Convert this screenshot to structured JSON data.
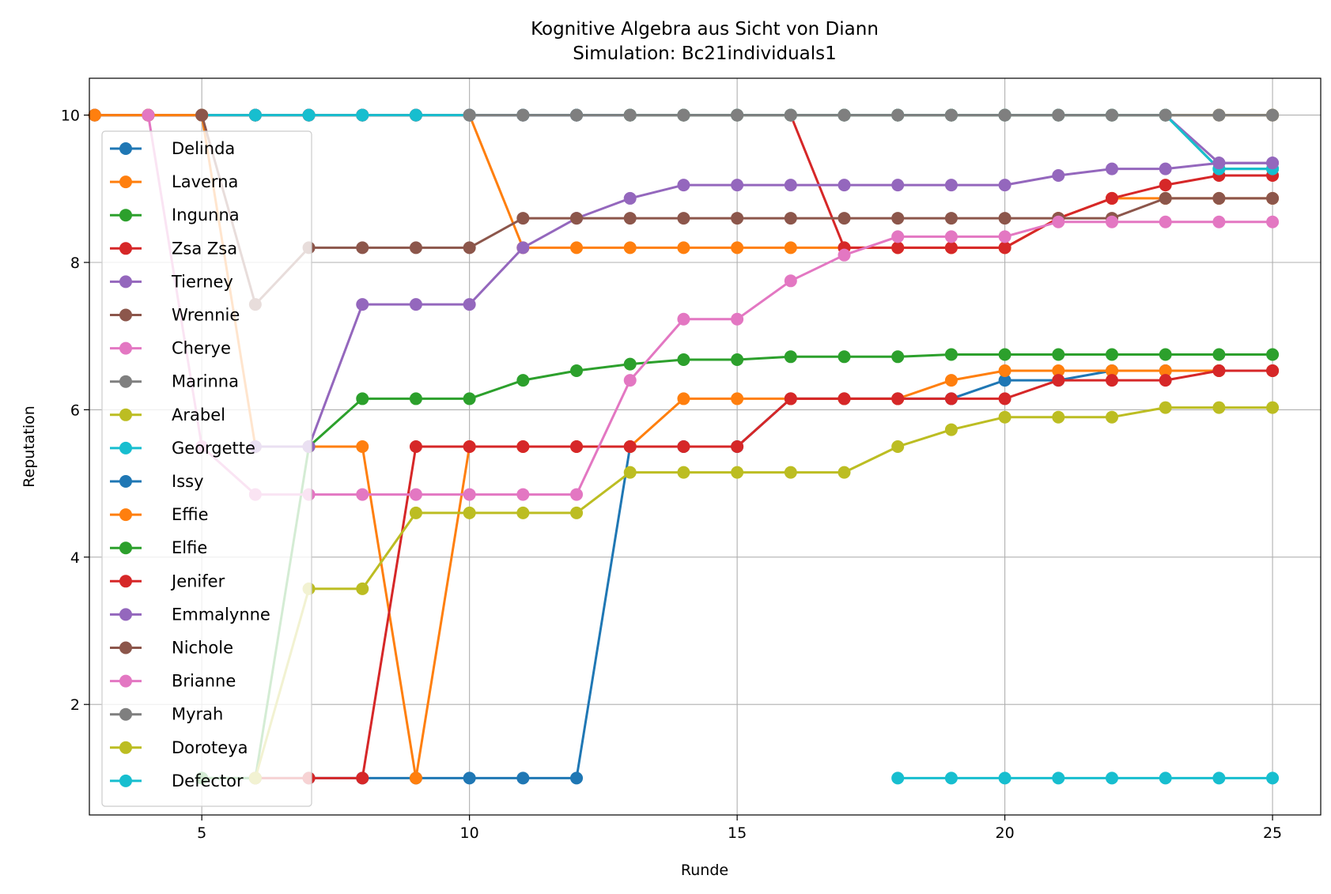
{
  "chart_data": {
    "type": "line",
    "title": "Kognitive Algebra aus Sicht von Diann",
    "subtitle": "Simulation: Bc21individuals1",
    "xlabel": "Runde",
    "ylabel": "Reputation",
    "xlim": [
      2.9,
      25.9
    ],
    "ylim": [
      0.5,
      10.5
    ],
    "xticks": [
      5,
      10,
      15,
      20,
      25
    ],
    "yticks": [
      2,
      4,
      6,
      8,
      10
    ],
    "grid": true,
    "legend_position": "upper-left",
    "series": [
      {
        "name": "Delinda",
        "color": "#1f77b4",
        "x": [
          3,
          4,
          5,
          6,
          7,
          8,
          9,
          10,
          11,
          12,
          13,
          14,
          15,
          16,
          17,
          18,
          19,
          20,
          21,
          22,
          23,
          24,
          25
        ],
        "y": [
          10,
          10,
          10,
          10,
          10,
          10,
          10,
          10,
          10,
          10,
          10,
          10,
          10,
          10,
          10,
          10,
          10,
          10,
          10,
          10,
          10,
          10,
          10
        ]
      },
      {
        "name": "Laverna",
        "color": "#ff7f0e",
        "x": [
          3,
          4,
          5,
          6,
          7,
          8,
          9,
          10,
          11,
          12,
          13,
          14,
          15,
          16,
          17,
          18,
          19,
          20,
          21,
          22,
          23,
          24,
          25
        ],
        "y": [
          10,
          10,
          10,
          10,
          10,
          10,
          10,
          10,
          8.2,
          8.2,
          8.2,
          8.2,
          8.2,
          8.2,
          8.2,
          8.2,
          8.2,
          8.2,
          8.6,
          8.87,
          8.87,
          8.87,
          8.87
        ]
      },
      {
        "name": "Ingunna",
        "color": "#2ca02c",
        "x": [
          3,
          4,
          5,
          6,
          7,
          8,
          9,
          10,
          11,
          12,
          13,
          14,
          15,
          16,
          17,
          18,
          19,
          20,
          21,
          22,
          23,
          24,
          25
        ],
        "y": [
          10,
          10,
          10,
          10,
          10,
          10,
          10,
          10,
          10,
          10,
          10,
          10,
          10,
          10,
          10,
          10,
          10,
          10,
          10,
          10,
          10,
          9.27,
          9.27
        ]
      },
      {
        "name": "Zsa Zsa",
        "color": "#d62728",
        "x": [
          3,
          4,
          5,
          6,
          7,
          8,
          9,
          10,
          11,
          12,
          13,
          14,
          15,
          16,
          17,
          18,
          19,
          20,
          21,
          22,
          23,
          24,
          25
        ],
        "y": [
          10,
          10,
          10,
          10,
          10,
          10,
          10,
          10,
          10,
          10,
          10,
          10,
          10,
          10,
          8.2,
          8.2,
          8.2,
          8.2,
          8.6,
          8.87,
          9.05,
          9.18,
          9.18
        ]
      },
      {
        "name": "Tierney",
        "color": "#9467bd",
        "x": [
          3,
          4,
          5,
          6,
          7,
          8,
          9,
          10,
          11,
          12,
          13,
          14,
          15,
          16,
          17,
          18,
          19,
          20,
          21,
          22,
          23,
          24,
          25
        ],
        "y": [
          10,
          10,
          10,
          10,
          10,
          10,
          10,
          10,
          10,
          10,
          10,
          10,
          10,
          10,
          10,
          10,
          10,
          10,
          10,
          10,
          10,
          9.35,
          9.35
        ]
      },
      {
        "name": "Wrennie",
        "color": "#8c564b",
        "x": [
          4,
          5,
          6,
          7,
          8,
          9,
          10,
          11,
          12,
          13,
          14,
          15,
          16,
          17,
          18,
          19,
          20,
          21,
          22,
          23,
          24,
          25
        ],
        "y": [
          10,
          10,
          10,
          10,
          10,
          10,
          10,
          10,
          10,
          10,
          10,
          10,
          10,
          10,
          10,
          10,
          10,
          10,
          10,
          10,
          10,
          10
        ]
      },
      {
        "name": "Cherye",
        "color": "#e377c2",
        "x": [
          4,
          5,
          6,
          7,
          8,
          9,
          10,
          11,
          12,
          13,
          14,
          15,
          16,
          17,
          18,
          19,
          20,
          21,
          22,
          23,
          24,
          25
        ],
        "y": [
          10,
          10,
          10,
          10,
          10,
          10,
          10,
          10,
          10,
          10,
          10,
          10,
          10,
          10,
          10,
          10,
          10,
          10,
          10,
          10,
          10,
          10
        ]
      },
      {
        "name": "Marinna",
        "color": "#7f7f7f",
        "x": [
          4,
          5,
          6,
          7,
          8,
          9,
          10,
          11,
          12,
          13,
          14,
          15,
          16,
          17,
          18,
          19,
          20,
          21,
          22,
          23,
          24,
          25
        ],
        "y": [
          10,
          10,
          10,
          10,
          10,
          10,
          10,
          10,
          10,
          10,
          10,
          10,
          10,
          10,
          10,
          10,
          10,
          10,
          10,
          10,
          10,
          10
        ]
      },
      {
        "name": "Arabel",
        "color": "#bcbd22",
        "x": [
          13,
          14,
          15,
          16,
          17,
          18,
          19,
          20,
          21,
          22,
          23,
          24,
          25
        ],
        "y": [
          10,
          10,
          10,
          10,
          10,
          10,
          10,
          10,
          10,
          10,
          10,
          10,
          10
        ]
      },
      {
        "name": "Georgette",
        "color": "#17becf",
        "x": [
          5,
          6,
          7,
          8,
          9,
          10,
          11,
          12,
          13,
          14,
          15,
          16,
          17,
          18,
          19,
          20,
          21,
          22,
          23,
          24,
          25
        ],
        "y": [
          10,
          10,
          10,
          10,
          10,
          10,
          10,
          10,
          10,
          10,
          10,
          10,
          10,
          10,
          10,
          10,
          10,
          10,
          10,
          9.27,
          9.27
        ]
      },
      {
        "name": "Issy",
        "color": "#1f77b4",
        "x": [
          5,
          6,
          7,
          8,
          9,
          10,
          11,
          12,
          13,
          14,
          15,
          16,
          17,
          18,
          19,
          20,
          21,
          22,
          23,
          24,
          25
        ],
        "y": [
          1,
          1,
          1,
          1,
          1,
          1,
          1,
          1,
          5.5,
          5.5,
          5.5,
          6.15,
          6.15,
          6.15,
          6.15,
          6.4,
          6.4,
          6.53,
          6.53,
          6.53,
          6.53
        ]
      },
      {
        "name": "Effie",
        "color": "#ff7f0e",
        "x": [
          3,
          4,
          5,
          6,
          7,
          8,
          9,
          10,
          11,
          12,
          13,
          14,
          15,
          16,
          17,
          18,
          19,
          20,
          21,
          22,
          23,
          24,
          25
        ],
        "y": [
          10,
          10,
          10,
          5.5,
          5.5,
          5.5,
          1,
          5.5,
          5.5,
          5.5,
          5.5,
          6.15,
          6.15,
          6.15,
          6.15,
          6.15,
          6.4,
          6.53,
          6.53,
          6.53,
          6.53,
          6.53,
          6.53
        ]
      },
      {
        "name": "Elfie",
        "color": "#2ca02c",
        "x": [
          5,
          6,
          7,
          8,
          9,
          10,
          11,
          12,
          13,
          14,
          15,
          16,
          17,
          18,
          19,
          20,
          21,
          22,
          23,
          24,
          25
        ],
        "y": [
          1,
          1,
          5.5,
          6.15,
          6.15,
          6.15,
          6.4,
          6.53,
          6.62,
          6.68,
          6.68,
          6.72,
          6.72,
          6.72,
          6.75,
          6.75,
          6.75,
          6.75,
          6.75,
          6.75,
          6.75
        ]
      },
      {
        "name": "Jenifer",
        "color": "#d62728",
        "x": [
          6,
          7,
          8,
          9,
          10,
          11,
          12,
          13,
          14,
          15,
          16,
          17,
          18,
          19,
          20,
          21,
          22,
          23,
          24,
          25
        ],
        "y": [
          1,
          1,
          1,
          5.5,
          5.5,
          5.5,
          5.5,
          5.5,
          5.5,
          5.5,
          6.15,
          6.15,
          6.15,
          6.15,
          6.15,
          6.4,
          6.4,
          6.4,
          6.53,
          6.53
        ]
      },
      {
        "name": "Emmalynne",
        "color": "#9467bd",
        "x": [
          6,
          7,
          8,
          9,
          10,
          11,
          12,
          13,
          14,
          15,
          16,
          17,
          18,
          19,
          20,
          21,
          22,
          23,
          24,
          25
        ],
        "y": [
          5.5,
          5.5,
          7.43,
          7.43,
          7.43,
          8.2,
          8.6,
          8.87,
          9.05,
          9.05,
          9.05,
          9.05,
          9.05,
          9.05,
          9.05,
          9.18,
          9.27,
          9.27,
          9.35,
          9.35
        ]
      },
      {
        "name": "Nichole",
        "color": "#8c564b",
        "x": [
          5,
          6,
          7,
          8,
          9,
          10,
          11,
          12,
          13,
          14,
          15,
          16,
          17,
          18,
          19,
          20,
          21,
          22,
          23,
          24,
          25
        ],
        "y": [
          10,
          7.43,
          8.2,
          8.2,
          8.2,
          8.2,
          8.6,
          8.6,
          8.6,
          8.6,
          8.6,
          8.6,
          8.6,
          8.6,
          8.6,
          8.6,
          8.6,
          8.6,
          8.87,
          8.87,
          8.87
        ]
      },
      {
        "name": "Brianne",
        "color": "#e377c2",
        "x": [
          4,
          5,
          6,
          7,
          8,
          9,
          10,
          11,
          12,
          13,
          14,
          15,
          16,
          17,
          18,
          19,
          20,
          21,
          22,
          23,
          24,
          25
        ],
        "y": [
          10,
          5.5,
          4.85,
          4.85,
          4.85,
          4.85,
          4.85,
          4.85,
          4.85,
          6.4,
          7.23,
          7.23,
          7.75,
          8.1,
          8.35,
          8.35,
          8.35,
          8.55,
          8.55,
          8.55,
          8.55,
          8.55
        ]
      },
      {
        "name": "Myrah",
        "color": "#7f7f7f",
        "x": [
          10,
          11,
          12,
          13,
          14,
          15,
          16,
          17,
          18,
          19,
          20,
          21,
          22,
          23,
          24,
          25
        ],
        "y": [
          10,
          10,
          10,
          10,
          10,
          10,
          10,
          10,
          10,
          10,
          10,
          10,
          10,
          10,
          10,
          10
        ]
      },
      {
        "name": "Doroteya",
        "color": "#bcbd22",
        "x": [
          6,
          7,
          8,
          9,
          10,
          11,
          12,
          13,
          14,
          15,
          16,
          17,
          18,
          19,
          20,
          21,
          22,
          23,
          24,
          25
        ],
        "y": [
          1,
          3.57,
          3.57,
          4.6,
          4.6,
          4.6,
          4.6,
          5.15,
          5.15,
          5.15,
          5.15,
          5.15,
          5.5,
          5.73,
          5.9,
          5.9,
          5.9,
          6.03,
          6.03,
          6.03
        ]
      },
      {
        "name": "Defector",
        "color": "#17becf",
        "x": [
          18,
          19,
          20,
          21,
          22,
          23,
          24,
          25
        ],
        "y": [
          1,
          1,
          1,
          1,
          1,
          1,
          1,
          1
        ]
      }
    ]
  }
}
